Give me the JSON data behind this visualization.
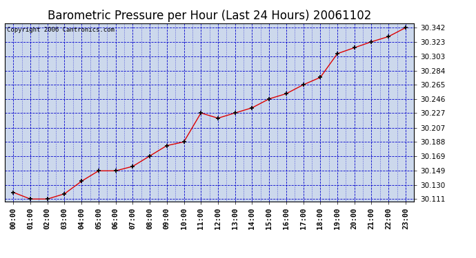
{
  "title": "Barometric Pressure per Hour (Last 24 Hours) 20061102",
  "copyright": "Copyright 2006 Cantronics.com",
  "hours": [
    "00:00",
    "01:00",
    "02:00",
    "03:00",
    "04:00",
    "05:00",
    "06:00",
    "07:00",
    "08:00",
    "09:00",
    "10:00",
    "11:00",
    "12:00",
    "13:00",
    "14:00",
    "15:00",
    "16:00",
    "17:00",
    "18:00",
    "19:00",
    "20:00",
    "21:00",
    "22:00",
    "23:00"
  ],
  "pressure": [
    30.12,
    30.111,
    30.111,
    30.118,
    30.135,
    30.149,
    30.149,
    30.155,
    30.169,
    30.183,
    30.188,
    30.227,
    30.22,
    30.227,
    30.234,
    30.246,
    30.253,
    30.265,
    30.275,
    30.307,
    30.315,
    30.323,
    30.33,
    30.342
  ],
  "line_color": "#dd0000",
  "marker_color": "#000000",
  "bg_color": "#ccd8ec",
  "outer_bg": "#ffffff",
  "grid_color": "#0000cc",
  "border_color": "#000000",
  "title_color": "#000000",
  "ymin": 30.111,
  "ymax": 30.342,
  "yticks": [
    30.111,
    30.13,
    30.149,
    30.169,
    30.188,
    30.207,
    30.227,
    30.246,
    30.265,
    30.284,
    30.303,
    30.323,
    30.342
  ],
  "title_fontsize": 12,
  "copyright_fontsize": 6.5,
  "tick_fontsize": 7.5,
  "figwidth": 6.9,
  "figheight": 3.75
}
